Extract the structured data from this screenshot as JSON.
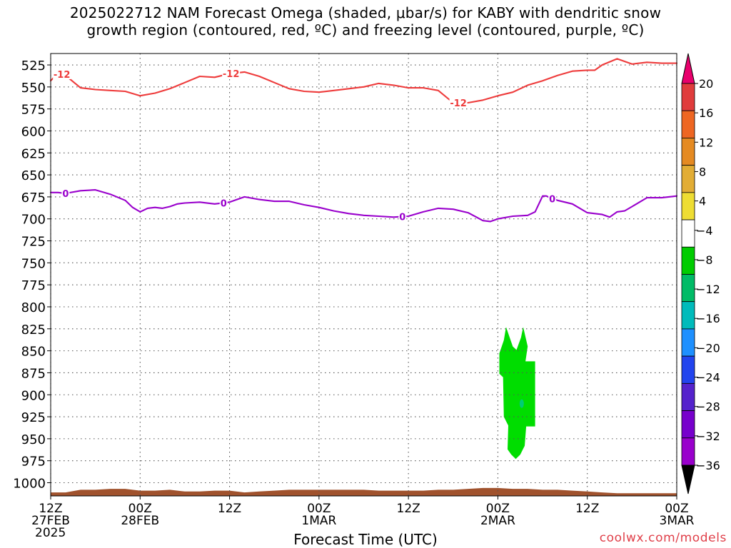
{
  "title": {
    "line1": "2025022712 NAM Forecast Omega (shaded, μbar/s) for KABY with dendritic snow",
    "line2": "growth region (contoured, red, ºC) and freezing level (contoured, purple, ºC)"
  },
  "credit": "coolwx.com/models",
  "chart_data": {
    "type": "line",
    "title": "2025022712 NAM Forecast Omega (shaded, μbar/s) for KABY with dendritic snow growth region (contoured, red, ºC) and freezing level (contoured, purple, ºC)",
    "xlabel": "Forecast Time (UTC)",
    "ylabel": "",
    "xlim": [
      0,
      84
    ],
    "ylim": [
      1015,
      512
    ],
    "y_reversed": true,
    "grid": true,
    "grid_style": "dotted",
    "x_ticks": [
      {
        "x": 0,
        "label": [
          "12Z",
          "27FEB",
          "2025"
        ]
      },
      {
        "x": 12,
        "label": [
          "00Z",
          "28FEB"
        ]
      },
      {
        "x": 24,
        "label": [
          "12Z"
        ]
      },
      {
        "x": 36,
        "label": [
          "00Z",
          "1MAR"
        ]
      },
      {
        "x": 48,
        "label": [
          "12Z"
        ]
      },
      {
        "x": 60,
        "label": [
          "00Z",
          "2MAR"
        ]
      },
      {
        "x": 72,
        "label": [
          "12Z"
        ]
      },
      {
        "x": 84,
        "label": [
          "00Z",
          "3MAR"
        ]
      }
    ],
    "y_ticks": [
      525,
      550,
      575,
      600,
      625,
      650,
      675,
      700,
      725,
      750,
      775,
      800,
      825,
      850,
      875,
      900,
      925,
      950,
      975,
      1000
    ],
    "series": [
      {
        "name": "-12",
        "color": "#ee3b3b",
        "x": [
          0,
          1,
          2,
          4,
          6,
          8,
          10,
          12,
          14,
          16,
          18,
          20,
          22,
          24,
          26,
          28,
          30,
          32,
          34,
          36,
          38,
          40,
          42,
          44,
          46,
          48,
          50,
          52,
          54,
          56,
          58,
          60,
          62,
          64,
          66,
          68,
          70,
          72,
          73,
          74,
          76,
          78,
          80,
          82,
          84
        ],
        "values": [
          543,
          534,
          537,
          551,
          553,
          554,
          555,
          560,
          557,
          552,
          545,
          538,
          539,
          535,
          533,
          538,
          545,
          552,
          555,
          556,
          554,
          552,
          550,
          546,
          548,
          551,
          551,
          554,
          568,
          568,
          565,
          560,
          556,
          548,
          543,
          537,
          532,
          531,
          531,
          525,
          518,
          524,
          522,
          523,
          523
        ],
        "labels": [
          {
            "x": 1.5,
            "text": "-12"
          },
          {
            "x": 24.2,
            "text": "-12"
          },
          {
            "x": 54.7,
            "text": "-12"
          }
        ]
      },
      {
        "name": "0",
        "color": "#9900cc",
        "x": [
          0,
          1,
          2,
          4,
          6,
          8,
          10,
          11,
          12,
          13,
          14,
          15,
          16,
          17,
          18,
          20,
          22,
          24,
          26,
          28,
          30,
          32,
          34,
          36,
          38,
          40,
          42,
          44,
          46,
          48,
          50,
          52,
          54,
          56,
          58,
          59,
          60,
          62,
          64,
          65,
          66,
          66.5,
          67,
          68,
          69,
          70,
          72,
          74,
          75,
          76,
          77,
          78,
          80,
          82,
          84
        ],
        "values": [
          670,
          670,
          671,
          668,
          667,
          672,
          679,
          687,
          692,
          688,
          687,
          688,
          686,
          683,
          682,
          681,
          683,
          681,
          675,
          678,
          680,
          680,
          684,
          687,
          691,
          694,
          696,
          697,
          698,
          697,
          692,
          688,
          689,
          693,
          702,
          703,
          700,
          697,
          696,
          692,
          674,
          674,
          676,
          679,
          681,
          683,
          693,
          695,
          698,
          692,
          691,
          686,
          676,
          676,
          674
        ],
        "labels": [
          {
            "x": 2,
            "text": "0"
          },
          {
            "x": 23.2,
            "text": "0"
          },
          {
            "x": 47.2,
            "text": "0"
          },
          {
            "x": 67.3,
            "text": "0"
          }
        ]
      }
    ],
    "shaded_region": {
      "variable": "omega",
      "units": "μbar/s",
      "fill_band": "-4 to -8",
      "fill_color": "#00dd00",
      "core_band": "-8 to -12",
      "core_color": "#00cc77",
      "x_range": [
        60.2,
        65
      ],
      "p_range": [
        823,
        973
      ],
      "core": {
        "x": 63.2,
        "p": 910
      }
    },
    "terrain": {
      "color": "#a0522d",
      "x": [
        0,
        2,
        4,
        6,
        8,
        10,
        12,
        14,
        16,
        18,
        20,
        22,
        24,
        26,
        28,
        30,
        32,
        34,
        36,
        38,
        40,
        42,
        44,
        46,
        48,
        50,
        52,
        54,
        56,
        58,
        60,
        62,
        64,
        66,
        68,
        70,
        72,
        74,
        76,
        78,
        80,
        82,
        84
      ],
      "values": [
        1011,
        1011,
        1008,
        1008,
        1007,
        1007,
        1009,
        1009,
        1008,
        1010,
        1010,
        1009,
        1009,
        1011,
        1010,
        1009,
        1008,
        1008,
        1008,
        1008,
        1008,
        1008,
        1009,
        1009,
        1009,
        1009,
        1008,
        1008,
        1007,
        1006,
        1006,
        1007,
        1007,
        1008,
        1008,
        1009,
        1010,
        1011,
        1012,
        1012,
        1012,
        1012,
        1012
      ]
    },
    "colorbar": {
      "ticks": [
        20,
        16,
        12,
        8,
        4,
        -4,
        -8,
        -12,
        -16,
        -20,
        -24,
        -28,
        -32,
        -36
      ],
      "colors": [
        "#e03c3c",
        "#ee6622",
        "#e58a22",
        "#e2ad35",
        "#eedd33",
        "#ffffff",
        "#00cc00",
        "#00bb66",
        "#00bbbb",
        "#1e90ff",
        "#2244ee",
        "#5522cc",
        "#7700cc",
        "#9900cc",
        "#a0a0a0"
      ],
      "top_color": "#e8006c",
      "bottom_color": "#000000"
    }
  }
}
